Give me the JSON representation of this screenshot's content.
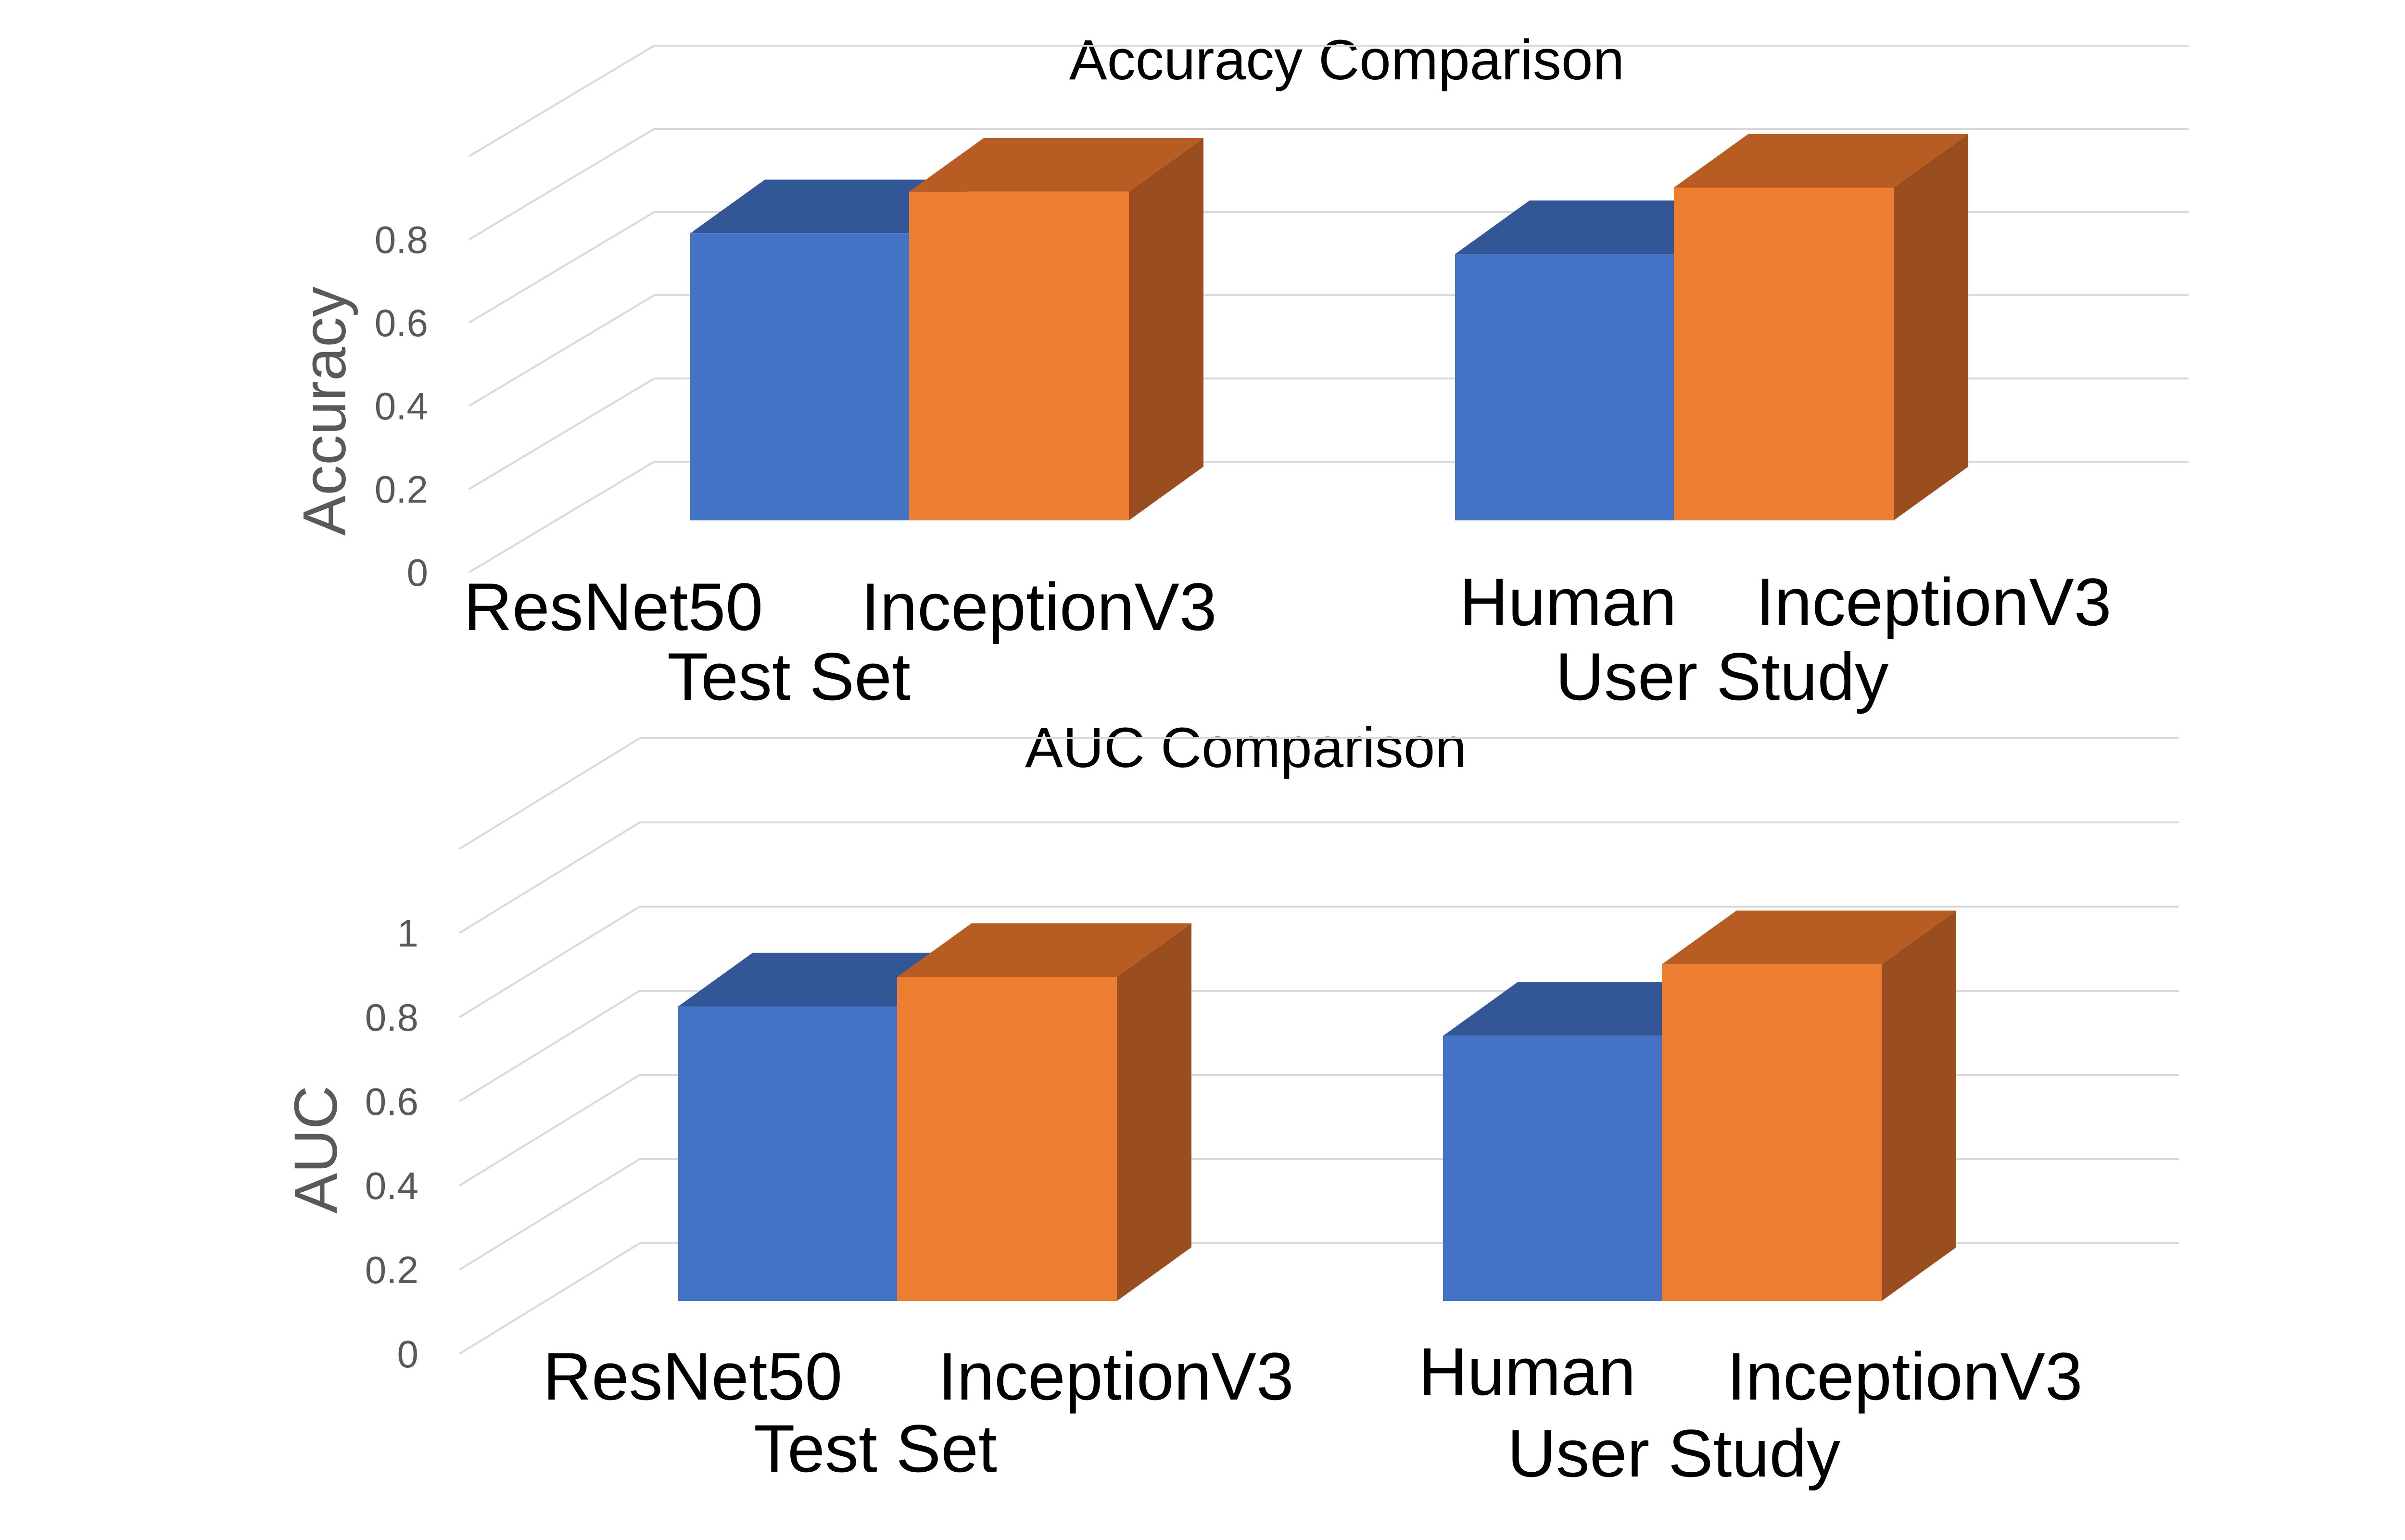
{
  "colors": {
    "blue": "#4472c4",
    "blue_top": "#335796",
    "orange": "#ed7d31",
    "orange_top": "#b75d24",
    "orange_side": "#9a4d1e",
    "grid": "#d9d9d9"
  },
  "chart_data": [
    {
      "type": "bar",
      "style": "3d-clustered-column",
      "title": "Accuracy Comparison",
      "ylabel": "Accuracy",
      "xlabel": "",
      "ylim": [
        0,
        1.0
      ],
      "yticks": [
        0,
        0.2,
        0.4,
        0.6,
        0.8
      ],
      "ytick_labels": [
        "0",
        "0.2",
        "0.4",
        "0.6",
        "0.8"
      ],
      "grid": true,
      "legend": "none",
      "groups": [
        {
          "name": "Test Set",
          "bars": [
            {
              "label": "ResNet50",
              "value": 0.69,
              "color": "blue"
            },
            {
              "label": "InceptionV3",
              "value": 0.79,
              "color": "orange"
            }
          ]
        },
        {
          "name": "User Study",
          "bars": [
            {
              "label": "Human",
              "value": 0.64,
              "color": "blue"
            },
            {
              "label": "InceptionV3",
              "value": 0.8,
              "color": "orange"
            }
          ]
        }
      ]
    },
    {
      "type": "bar",
      "style": "3d-clustered-column",
      "title": "AUC Comparison",
      "ylabel": "AUC",
      "xlabel": "",
      "ylim": [
        0,
        1.2
      ],
      "yticks": [
        0,
        0.2,
        0.4,
        0.6,
        0.8,
        1
      ],
      "ytick_labels": [
        "0",
        "0.2",
        "0.4",
        "0.6",
        "0.8",
        "1"
      ],
      "grid": true,
      "legend": "none",
      "groups": [
        {
          "name": "Test Set",
          "bars": [
            {
              "label": "ResNet50",
              "value": 0.7,
              "color": "blue"
            },
            {
              "label": "InceptionV3",
              "value": 0.77,
              "color": "orange"
            }
          ]
        },
        {
          "name": "User Study",
          "bars": [
            {
              "label": "Human",
              "value": 0.63,
              "color": "blue"
            },
            {
              "label": "InceptionV3",
              "value": 0.8,
              "color": "orange"
            }
          ]
        }
      ]
    }
  ]
}
